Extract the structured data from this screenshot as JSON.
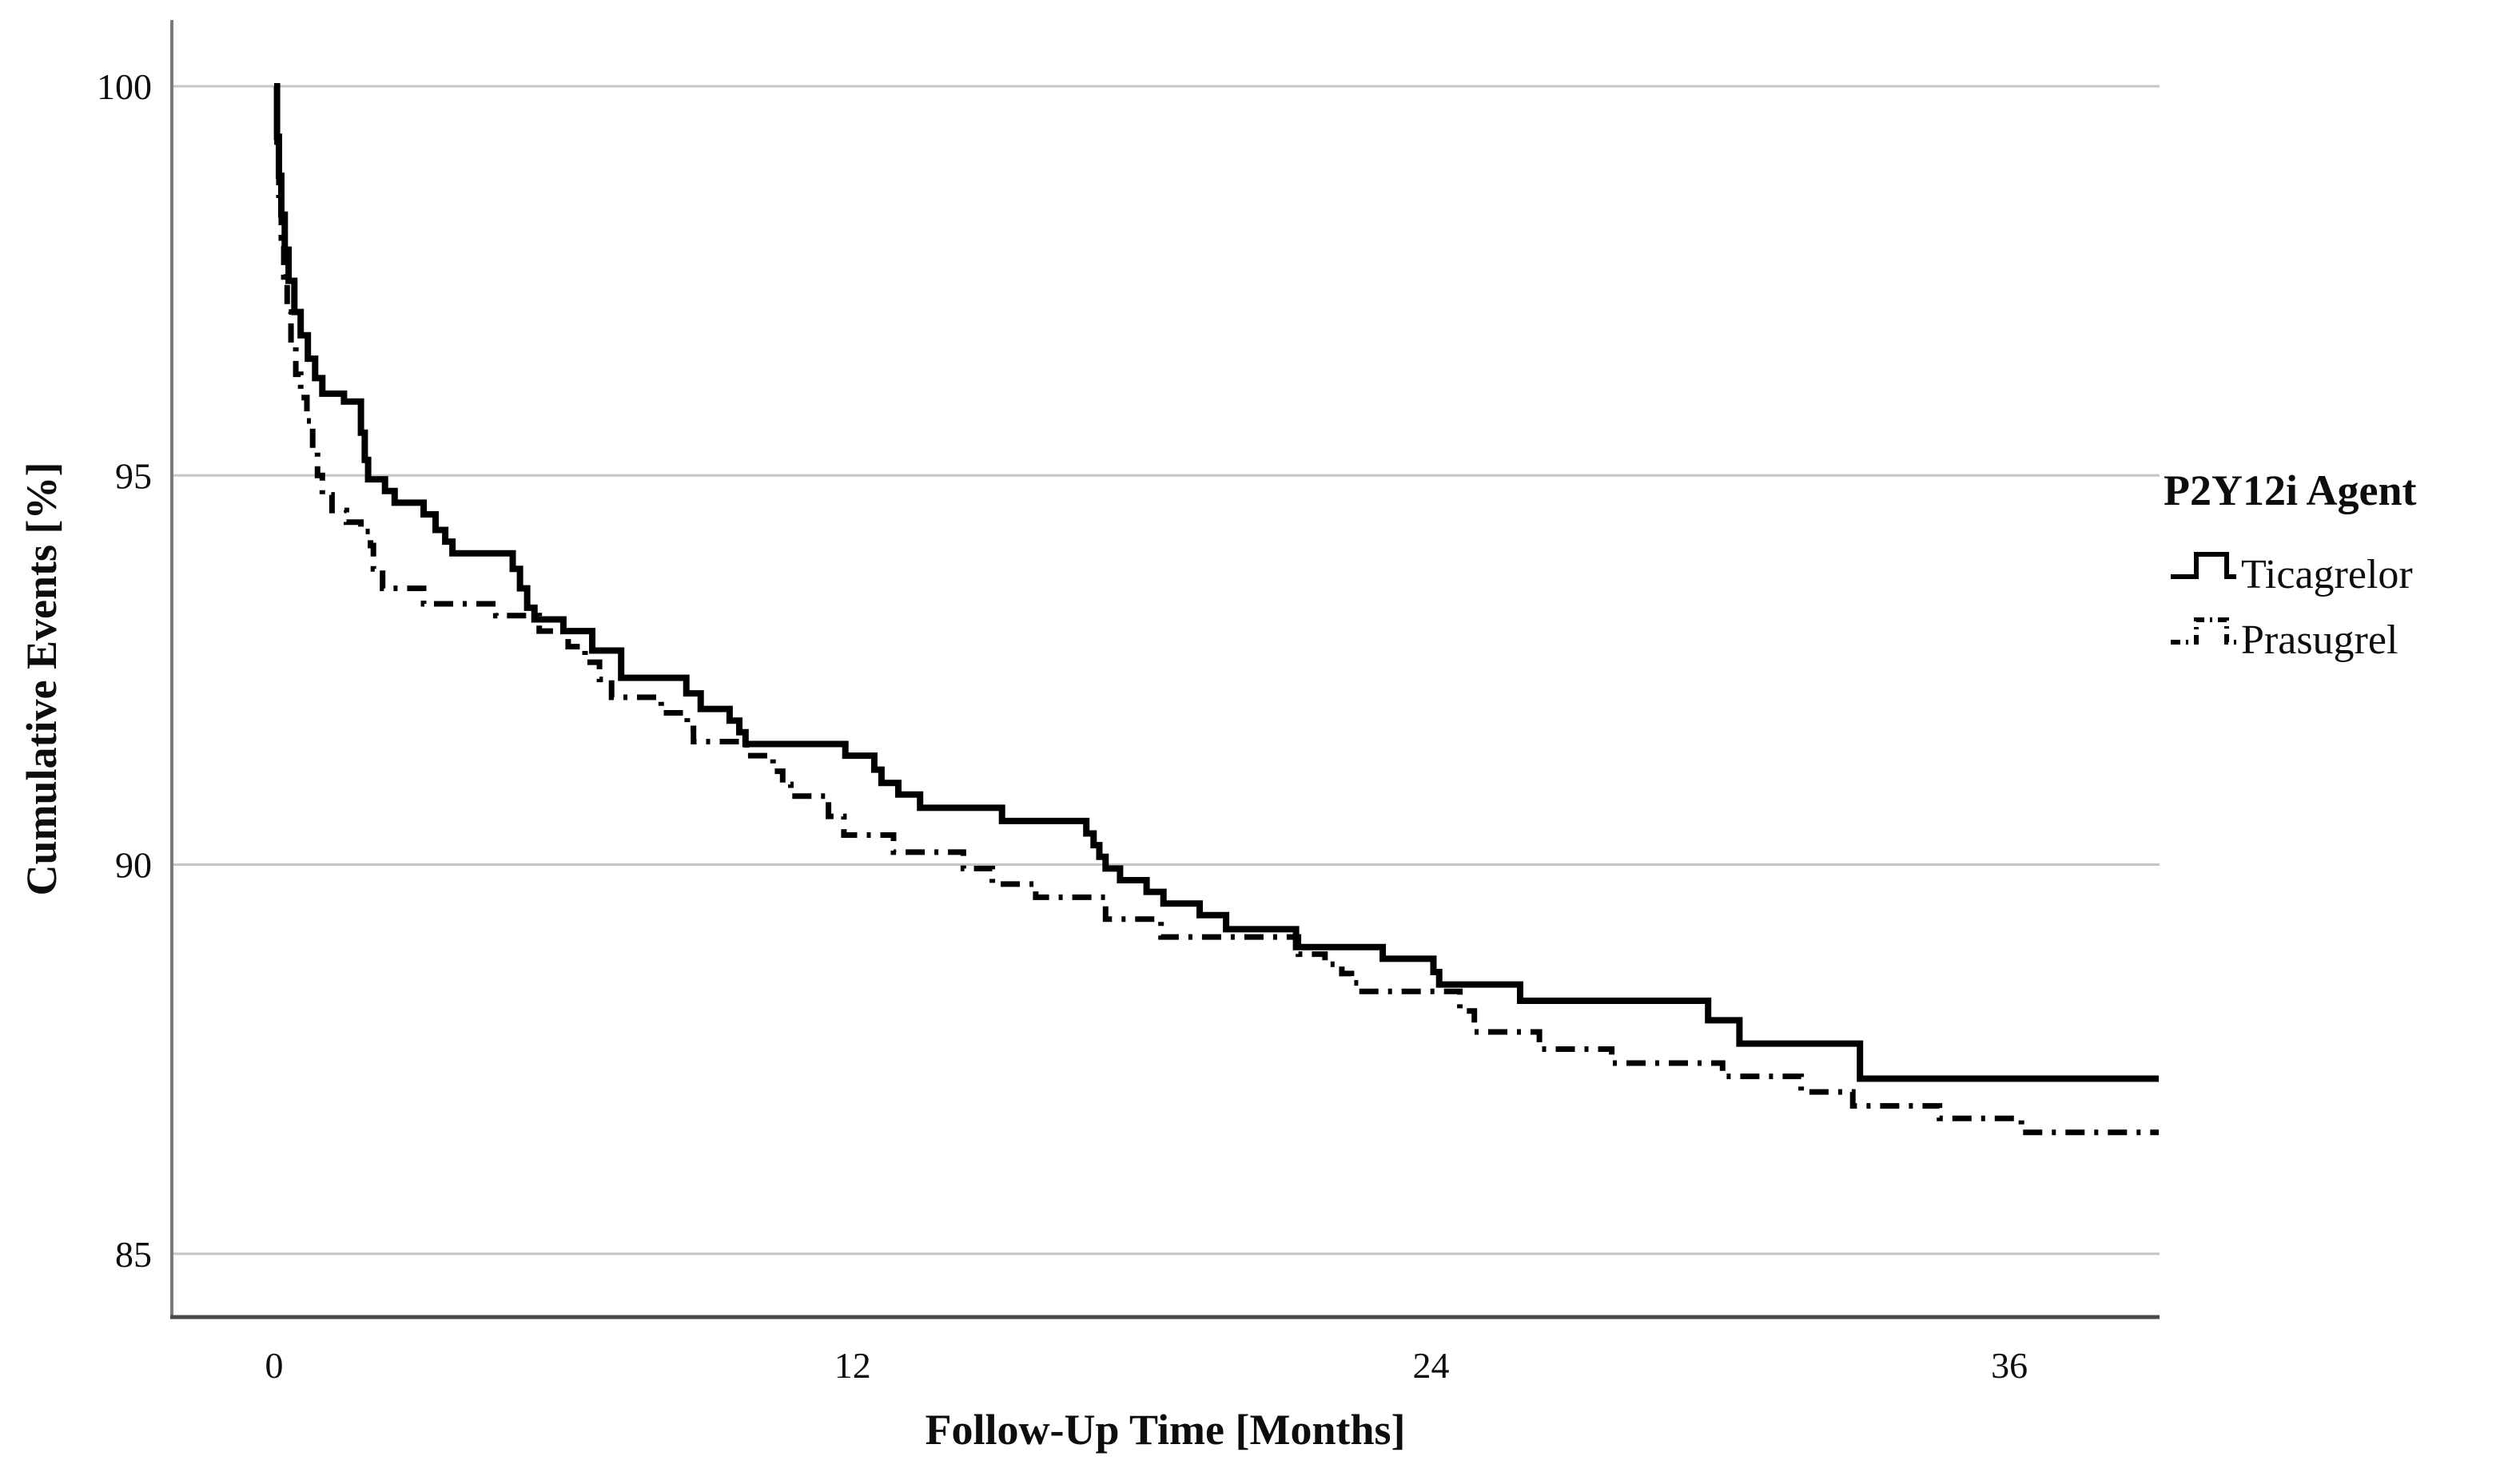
{
  "chart_data": {
    "type": "line",
    "subtype": "kaplan-meier-step",
    "title": "",
    "xlabel": "Follow-Up Time [Months]",
    "ylabel": "Cumulative Events [%]",
    "x_ticks": [
      0,
      12,
      24,
      36
    ],
    "y_ticks": [
      100,
      95,
      90,
      85
    ],
    "xlim": [
      -2.1,
      39.1
    ],
    "ylim": [
      84.2,
      100.85
    ],
    "x_end": 39.1,
    "grid": "horizontal-only",
    "colors": {
      "line": "#000000",
      "gridline": "#c6c6c6",
      "y_axis": "#7a7a7a",
      "x_axis": "#4a4a4a",
      "background": "#ffffff"
    },
    "legend": {
      "title": "P2Y12i Agent",
      "position": "right",
      "entries": [
        {
          "label": "Ticagrelor",
          "style": "solid"
        },
        {
          "label": "Prasugrel",
          "style": "dash-dot"
        }
      ]
    },
    "series": [
      {
        "name": "Ticagrelor",
        "style": "solid",
        "steps": [
          [
            0,
            100
          ],
          [
            0.06,
            99.35
          ],
          [
            0.1,
            98.85
          ],
          [
            0.15,
            98.35
          ],
          [
            0.22,
            97.9
          ],
          [
            0.3,
            97.5
          ],
          [
            0.42,
            97.1
          ],
          [
            0.55,
            96.8
          ],
          [
            0.7,
            96.5
          ],
          [
            0.85,
            96.25
          ],
          [
            1.0,
            96.05
          ],
          [
            1.45,
            95.95
          ],
          [
            1.8,
            95.55
          ],
          [
            1.88,
            95.2
          ],
          [
            1.95,
            94.95
          ],
          [
            2.3,
            94.8
          ],
          [
            2.5,
            94.65
          ],
          [
            3.1,
            94.5
          ],
          [
            3.35,
            94.3
          ],
          [
            3.55,
            94.15
          ],
          [
            3.7,
            94.0
          ],
          [
            4.95,
            93.8
          ],
          [
            5.1,
            93.55
          ],
          [
            5.25,
            93.3
          ],
          [
            5.4,
            93.15
          ],
          [
            6.0,
            93.0
          ],
          [
            6.6,
            92.75
          ],
          [
            7.2,
            92.4
          ],
          [
            8.55,
            92.2
          ],
          [
            8.85,
            92.0
          ],
          [
            9.45,
            91.85
          ],
          [
            9.65,
            91.7
          ],
          [
            9.78,
            91.55
          ],
          [
            11.85,
            91.4
          ],
          [
            12.45,
            91.22
          ],
          [
            12.6,
            91.05
          ],
          [
            12.95,
            90.9
          ],
          [
            13.4,
            90.73
          ],
          [
            15.1,
            90.56
          ],
          [
            16.85,
            90.4
          ],
          [
            17.0,
            90.25
          ],
          [
            17.12,
            90.1
          ],
          [
            17.25,
            89.95
          ],
          [
            17.55,
            89.8
          ],
          [
            18.1,
            89.65
          ],
          [
            18.45,
            89.5
          ],
          [
            19.2,
            89.35
          ],
          [
            19.75,
            89.17
          ],
          [
            21.2,
            88.94
          ],
          [
            23.0,
            88.79
          ],
          [
            24.05,
            88.62
          ],
          [
            24.17,
            88.46
          ],
          [
            25.85,
            88.25
          ],
          [
            29.75,
            88.0
          ],
          [
            30.4,
            87.7
          ],
          [
            32.9,
            87.25
          ]
        ]
      },
      {
        "name": "Prasugrel",
        "style": "dash-dot",
        "steps": [
          [
            0,
            100
          ],
          [
            0.06,
            99.2
          ],
          [
            0.1,
            98.6
          ],
          [
            0.15,
            98.05
          ],
          [
            0.2,
            97.55
          ],
          [
            0.27,
            97.1
          ],
          [
            0.35,
            96.7
          ],
          [
            0.45,
            96.3
          ],
          [
            0.55,
            96.0
          ],
          [
            0.68,
            95.7
          ],
          [
            0.8,
            95.35
          ],
          [
            0.9,
            95.0
          ],
          [
            1.0,
            94.75
          ],
          [
            1.2,
            94.55
          ],
          [
            1.5,
            94.4
          ],
          [
            1.8,
            94.28
          ],
          [
            2.0,
            94.1
          ],
          [
            2.06,
            93.8
          ],
          [
            2.25,
            93.55
          ],
          [
            3.1,
            93.35
          ],
          [
            4.6,
            93.2
          ],
          [
            5.5,
            93.0
          ],
          [
            6.1,
            92.8
          ],
          [
            6.45,
            92.6
          ],
          [
            6.75,
            92.38
          ],
          [
            7.0,
            92.15
          ],
          [
            8.03,
            91.95
          ],
          [
            8.57,
            91.75
          ],
          [
            8.7,
            91.58
          ],
          [
            9.8,
            91.4
          ],
          [
            10.35,
            91.2
          ],
          [
            10.55,
            91.03
          ],
          [
            10.72,
            90.88
          ],
          [
            11.5,
            90.62
          ],
          [
            11.82,
            90.38
          ],
          [
            12.85,
            90.16
          ],
          [
            14.3,
            89.95
          ],
          [
            14.9,
            89.75
          ],
          [
            15.8,
            89.58
          ],
          [
            17.25,
            89.3
          ],
          [
            18.4,
            89.07
          ],
          [
            21.25,
            88.85
          ],
          [
            21.8,
            88.72
          ],
          [
            22.15,
            88.6
          ],
          [
            22.35,
            88.48
          ],
          [
            22.5,
            88.37
          ],
          [
            24.6,
            88.12
          ],
          [
            24.9,
            87.85
          ],
          [
            26.25,
            87.63
          ],
          [
            27.75,
            87.45
          ],
          [
            30.05,
            87.28
          ],
          [
            31.68,
            87.08
          ],
          [
            32.75,
            86.9
          ],
          [
            34.55,
            86.74
          ],
          [
            36.25,
            86.56
          ]
        ]
      }
    ]
  }
}
